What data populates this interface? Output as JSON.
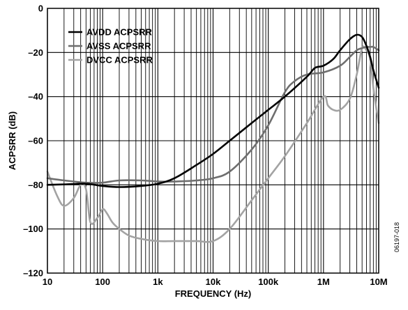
{
  "chart_data": {
    "type": "line",
    "xlabel": "FREQUENCY (Hz)",
    "ylabel": "ACPSRR (dB)",
    "x_scale": "log",
    "xlim": [
      10,
      10000000
    ],
    "ylim": [
      -120,
      0
    ],
    "grid": true,
    "legend_position": "top-left",
    "x_ticks": [
      {
        "value": 10,
        "label": "10"
      },
      {
        "value": 100,
        "label": "100"
      },
      {
        "value": 1000,
        "label": "1k"
      },
      {
        "value": 10000,
        "label": "10k"
      },
      {
        "value": 100000,
        "label": "100k"
      },
      {
        "value": 1000000,
        "label": "1M"
      },
      {
        "value": 10000000,
        "label": "10M"
      }
    ],
    "y_ticks": [
      {
        "value": 0,
        "label": "0"
      },
      {
        "value": -20,
        "label": "–20"
      },
      {
        "value": -40,
        "label": "–40"
      },
      {
        "value": -60,
        "label": "–60"
      },
      {
        "value": -80,
        "label": "–80"
      },
      {
        "value": -100,
        "label": "–100"
      },
      {
        "value": -120,
        "label": "–120"
      }
    ],
    "series": [
      {
        "name": "AVDD ACPSRR",
        "color": "#000000",
        "x": [
          10,
          20,
          50,
          100,
          200,
          500,
          1000,
          2000,
          5000,
          10000,
          20000,
          50000,
          100000,
          200000,
          500000,
          700000,
          1000000,
          1500000,
          2000000,
          3000000,
          4000000,
          5000000,
          6000000,
          7000000,
          8000000,
          10000000
        ],
        "y": [
          -80,
          -79.8,
          -79.5,
          -80.5,
          -81,
          -80.5,
          -79.5,
          -77,
          -71,
          -66,
          -60,
          -52,
          -46,
          -40,
          -31,
          -27,
          -26,
          -23,
          -19,
          -14,
          -12,
          -13,
          -17,
          -22,
          -28,
          -36
        ]
      },
      {
        "name": "AVSS ACPSRR",
        "color": "#6e6e6e",
        "x": [
          10,
          20,
          50,
          100,
          200,
          500,
          1000,
          2000,
          5000,
          10000,
          20000,
          50000,
          100000,
          200000,
          300000,
          500000,
          1000000,
          2000000,
          3000000,
          4000000,
          5000000,
          6000000,
          7000000,
          8000000,
          10000000
        ],
        "y": [
          -77,
          -78,
          -79,
          -79,
          -78,
          -78,
          -78.5,
          -78.5,
          -78,
          -77,
          -74,
          -64,
          -53,
          -38,
          -33,
          -30,
          -29,
          -26,
          -22,
          -19,
          -18,
          -17.5,
          -17.5,
          -17.5,
          -19
        ]
      },
      {
        "name": "DVCC ACPSRR",
        "color": "#a3a3a3",
        "x": [
          10,
          15,
          20,
          30,
          40,
          50,
          60,
          80,
          100,
          120,
          150,
          200,
          300,
          500,
          1000,
          2000,
          5000,
          10000,
          20000,
          50000,
          100000,
          200000,
          500000,
          1000000,
          1200000,
          1500000,
          2000000,
          3000000,
          4000000,
          5000000,
          6000000,
          7000000,
          8000000,
          9000000,
          10000000
        ],
        "y": [
          -74,
          -85,
          -89.5,
          -86,
          -80,
          -82,
          -97,
          -95,
          -91,
          -93,
          -97,
          -100,
          -103,
          -104.5,
          -105.5,
          -105.5,
          -105.5,
          -105.5,
          -100,
          -87,
          -77,
          -67,
          -52,
          -40,
          -44,
          -46,
          -46,
          -41,
          -30,
          -18,
          -19,
          -23,
          -36,
          -45,
          -52
        ]
      }
    ]
  },
  "figure_code": "06197-018"
}
